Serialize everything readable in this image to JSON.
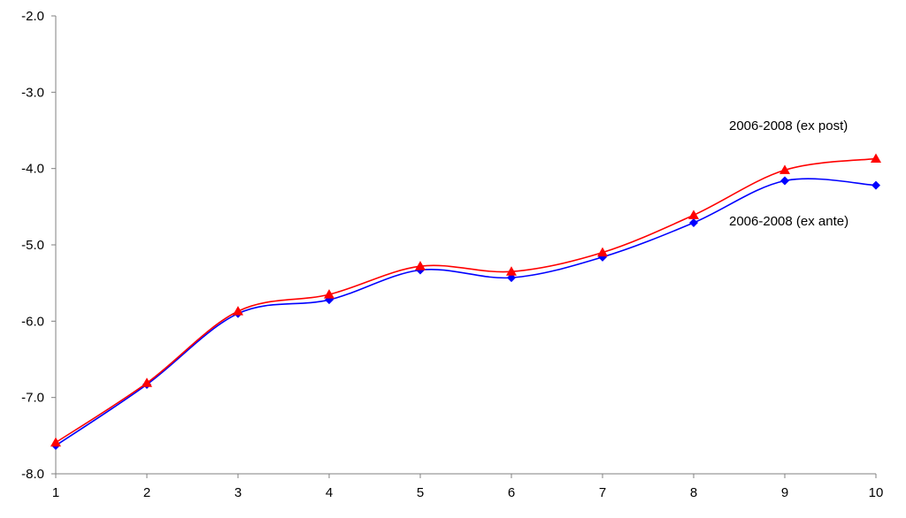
{
  "chart_data": {
    "type": "line",
    "title": "",
    "xlabel": "",
    "ylabel": "",
    "x": [
      1,
      2,
      3,
      4,
      5,
      6,
      7,
      8,
      9,
      10
    ],
    "x_tick_labels": [
      "1",
      "2",
      "3",
      "4",
      "5",
      "6",
      "7",
      "8",
      "9",
      "10"
    ],
    "ylim": [
      -8.0,
      -2.0
    ],
    "y_ticks": [
      -2.0,
      -3.0,
      -4.0,
      -5.0,
      -6.0,
      -7.0,
      -8.0
    ],
    "y_tick_labels": [
      "-2.0",
      "-3.0",
      "-4.0",
      "-5.0",
      "-6.0",
      "-7.0",
      "-8.0"
    ],
    "grid": false,
    "legend": "none (series labelled directly on the plot)",
    "series": [
      {
        "name": "2006-2008 (ex ante)",
        "color": "#0000FF",
        "marker": "diamond",
        "values": [
          -7.63,
          -6.83,
          -5.9,
          -5.72,
          -5.33,
          -5.43,
          -5.16,
          -4.71,
          -4.16,
          -4.22
        ]
      },
      {
        "name": "2006-2008 (ex post)",
        "color": "#FF0000",
        "marker": "triangle",
        "values": [
          -7.59,
          -6.81,
          -5.87,
          -5.65,
          -5.28,
          -5.35,
          -5.1,
          -4.61,
          -4.02,
          -3.87
        ]
      }
    ]
  }
}
